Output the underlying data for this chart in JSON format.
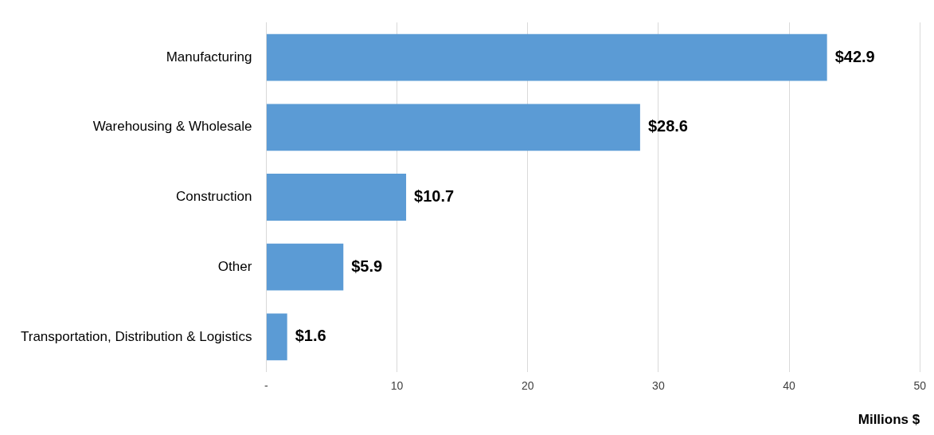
{
  "chart_data": {
    "type": "bar",
    "orientation": "horizontal",
    "categories": [
      "Manufacturing",
      "Warehousing & Wholesale",
      "Construction",
      "Other",
      "Transportation, Distribution & Logistics"
    ],
    "values": [
      42.9,
      28.6,
      10.7,
      5.9,
      1.6
    ],
    "value_labels": [
      "$42.9",
      "$28.6",
      "$10.7",
      "$5.9",
      "$1.6"
    ],
    "color": "#5b9bd5",
    "xlabel": "Millions $",
    "xlim": [
      0,
      50
    ],
    "xticks": [
      {
        "value": 0,
        "label": "-"
      },
      10,
      20,
      30,
      40,
      50
    ],
    "grid": "x",
    "legend": false
  }
}
